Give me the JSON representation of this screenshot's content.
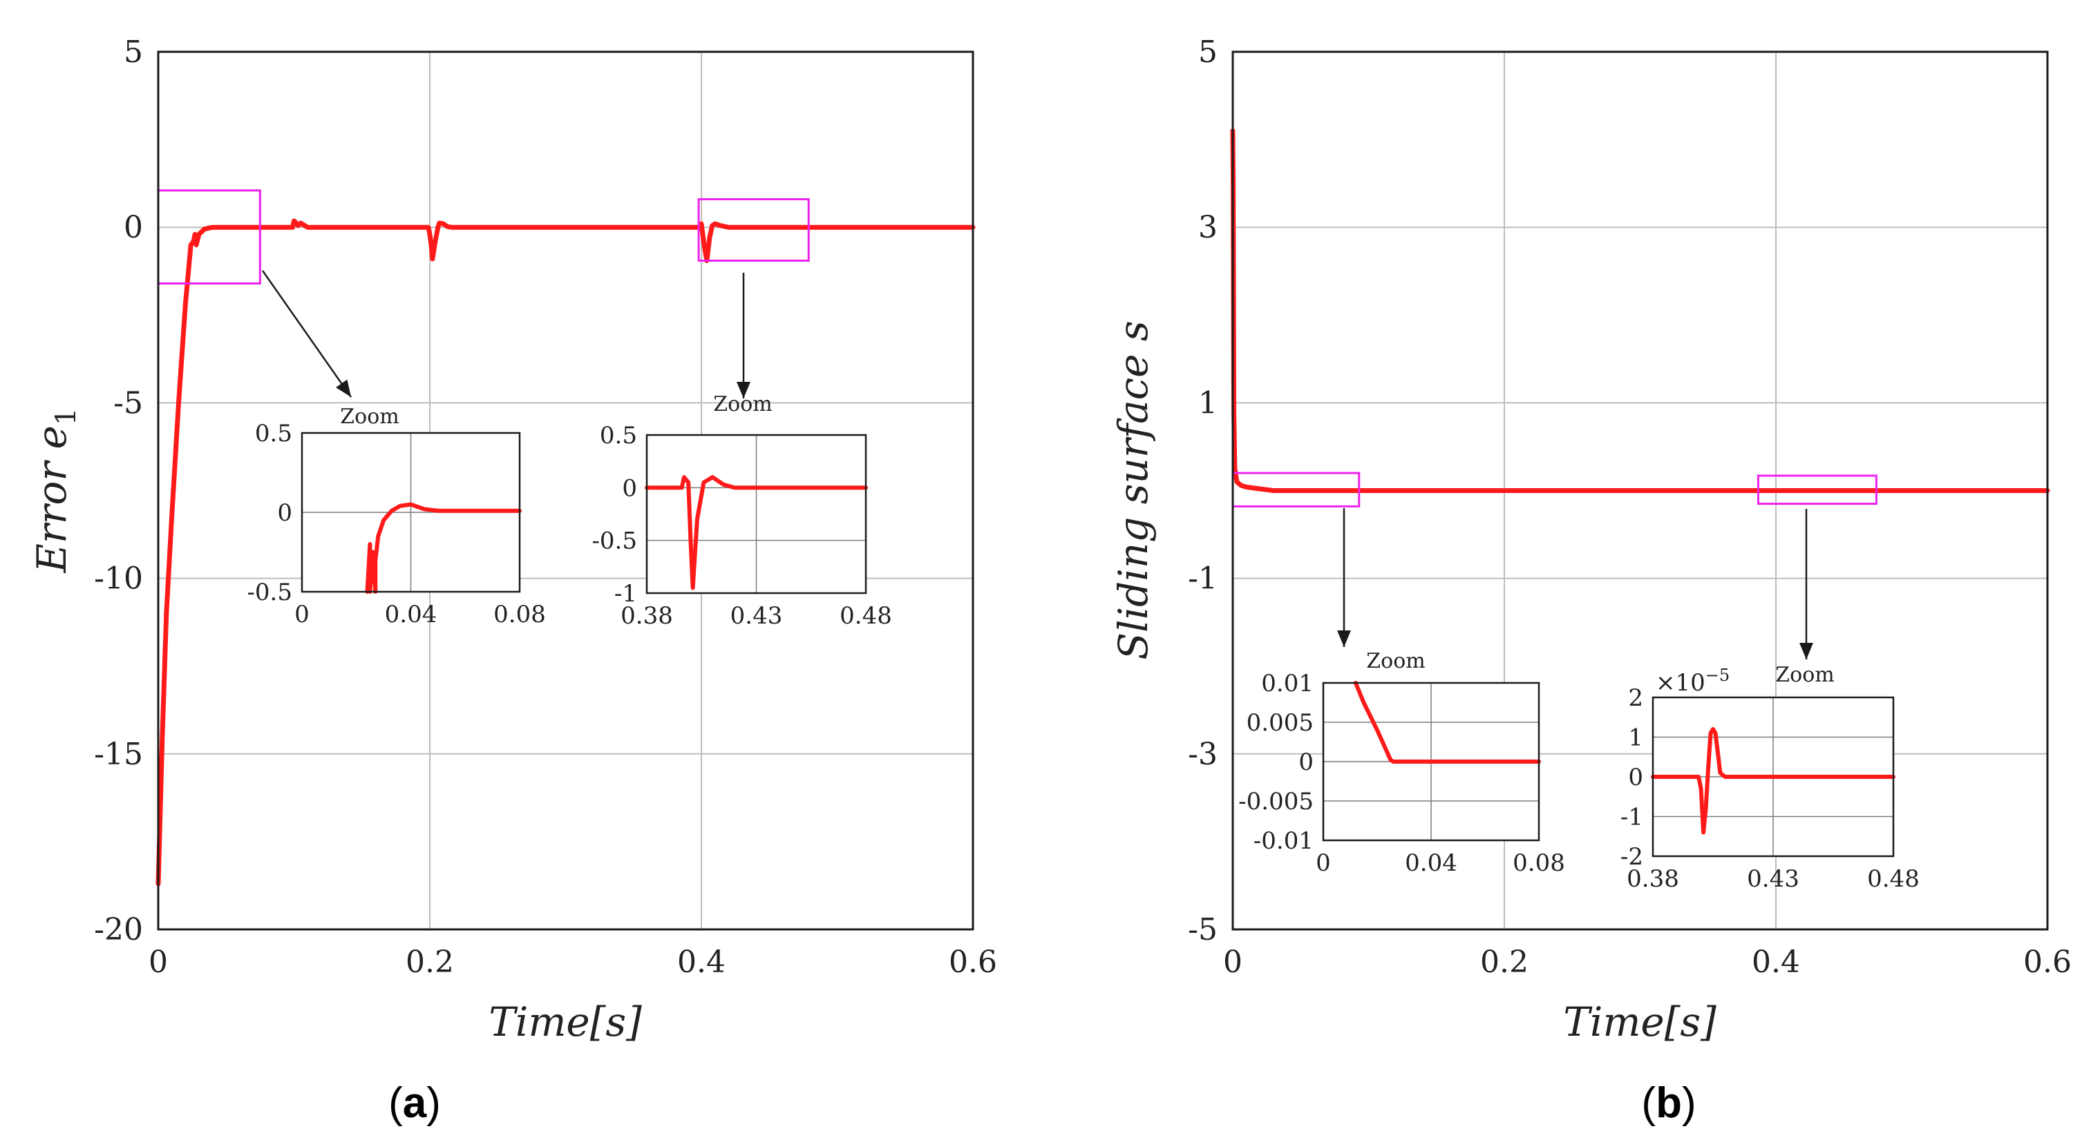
{
  "chart_data": [
    {
      "type": "line",
      "panel_label": "(a)",
      "panel_label_parts": [
        "(",
        "a",
        ")"
      ],
      "xlabel": "Time[s]",
      "ylabel": "Error e",
      "ylabel_subscript": "1",
      "xlim": [
        0,
        0.6
      ],
      "ylim": [
        -20,
        5
      ],
      "xticks": [
        0,
        0.2,
        0.4,
        0.6
      ],
      "xtick_labels": [
        "0",
        "0.2",
        "0.4",
        "0.6"
      ],
      "yticks": [
        5,
        0,
        -5,
        -10,
        -15,
        -20
      ],
      "ytick_labels": [
        "5",
        "0",
        "-5",
        "-10",
        "-15",
        "-20"
      ],
      "grid": true,
      "color": "#ff1a1a",
      "series": [
        {
          "name": "e1",
          "x": [
            0,
            0.003,
            0.006,
            0.01,
            0.015,
            0.02,
            0.024,
            0.026,
            0.027,
            0.028,
            0.03,
            0.034,
            0.04,
            0.05,
            0.099,
            0.1,
            0.101,
            0.103,
            0.105,
            0.11,
            0.199,
            0.2,
            0.201,
            0.202,
            0.204,
            0.206,
            0.207,
            0.21,
            0.213,
            0.216,
            0.22,
            0.399,
            0.4,
            0.402,
            0.404,
            0.406,
            0.408,
            0.41,
            0.414,
            0.42,
            0.6
          ],
          "y": [
            -18.7,
            -14.5,
            -11,
            -8.2,
            -5,
            -2.2,
            -0.5,
            -0.4,
            -0.2,
            -0.5,
            -0.2,
            -0.05,
            0,
            0,
            0,
            0.18,
            0.15,
            0.05,
            0.12,
            0,
            0,
            -0.2,
            -0.5,
            -0.9,
            -0.4,
            0,
            0.12,
            0.1,
            0.02,
            0,
            0,
            0,
            0.1,
            -0.5,
            -0.95,
            -0.3,
            0.05,
            0.1,
            0.05,
            0,
            0
          ]
        }
      ],
      "highlight_boxes": [
        {
          "x": [
            0,
            0.075
          ],
          "y": [
            -1.6,
            1.05
          ]
        },
        {
          "x": [
            0.398,
            0.479
          ],
          "y": [
            -0.95,
            0.8
          ]
        }
      ],
      "insets": [
        {
          "title": "Zoom",
          "xlim": [
            0,
            0.08
          ],
          "ylim": [
            -0.5,
            0.5
          ],
          "xticks": [
            0,
            0.04,
            0.08
          ],
          "xtick_labels": [
            "0",
            "0.04",
            "0.08"
          ],
          "yticks": [
            0.5,
            0,
            -0.5
          ],
          "ytick_labels": [
            "0.5",
            "0",
            "-0.5"
          ],
          "x": [
            0.024,
            0.025,
            0.025,
            0.026,
            0.027,
            0.027,
            0.028,
            0.03,
            0.033,
            0.036,
            0.04,
            0.045,
            0.05,
            0.06,
            0.08
          ],
          "y": [
            -0.5,
            -0.2,
            -0.5,
            -0.25,
            -0.5,
            -0.3,
            -0.15,
            -0.05,
            0.01,
            0.04,
            0.05,
            0.02,
            0.01,
            0.01,
            0.01
          ]
        },
        {
          "title": "Zoom",
          "xlim": [
            0.38,
            0.48
          ],
          "ylim": [
            -1,
            0.5
          ],
          "xticks": [
            0.38,
            0.43,
            0.48
          ],
          "xtick_labels": [
            "0.38",
            "0.43",
            "0.48"
          ],
          "yticks": [
            0.5,
            0,
            -0.5,
            -1
          ],
          "ytick_labels": [
            "0.5",
            "0",
            "-0.5",
            "-1"
          ],
          "x": [
            0.38,
            0.396,
            0.397,
            0.399,
            0.4,
            0.401,
            0.403,
            0.406,
            0.41,
            0.415,
            0.42,
            0.48
          ],
          "y": [
            0,
            0,
            0.1,
            0.05,
            -0.5,
            -0.95,
            -0.3,
            0.05,
            0.1,
            0.03,
            0,
            0
          ]
        }
      ]
    },
    {
      "type": "line",
      "panel_label": "(b)",
      "panel_label_parts": [
        "(",
        "b",
        ")"
      ],
      "xlabel": "Time[s]",
      "ylabel": "Sliding surface s",
      "xlim": [
        0,
        0.6
      ],
      "ylim": [
        -5,
        5
      ],
      "xticks": [
        0,
        0.2,
        0.4,
        0.6
      ],
      "xtick_labels": [
        "0",
        "0.2",
        "0.4",
        "0.6"
      ],
      "yticks": [
        5,
        3,
        1,
        -1,
        -3,
        -5
      ],
      "ytick_labels": [
        "5",
        "3",
        "1",
        "-1",
        "-3",
        "-5"
      ],
      "grid": true,
      "color": "#ff1a1a",
      "series": [
        {
          "name": "s",
          "x": [
            0,
            0.0003,
            0.0008,
            0.0015,
            0.003,
            0.006,
            0.01,
            0.02,
            0.03,
            0.6
          ],
          "y": [
            4.1,
            3.5,
            0.9,
            0.25,
            0.1,
            0.06,
            0.04,
            0.02,
            0,
            0
          ]
        }
      ],
      "highlight_boxes": [
        {
          "x": [
            0,
            0.093
          ],
          "y": [
            -0.18,
            0.2
          ]
        },
        {
          "x": [
            0.387,
            0.474
          ],
          "y": [
            -0.15,
            0.17
          ]
        }
      ],
      "insets": [
        {
          "title": "Zoom",
          "xlim": [
            0,
            0.08
          ],
          "ylim": [
            -0.01,
            0.01
          ],
          "xticks": [
            0,
            0.04,
            0.08
          ],
          "xtick_labels": [
            "0",
            "0.04",
            "0.08"
          ],
          "yticks": [
            0.01,
            0.005,
            0,
            -0.005,
            -0.01
          ],
          "ytick_labels": [
            "0.01",
            "0.005",
            "0",
            "-0.005",
            "-0.01"
          ],
          "x": [
            0.012,
            0.015,
            0.02,
            0.025,
            0.026,
            0.03,
            0.08
          ],
          "y": [
            0.01,
            0.0075,
            0.004,
            0.0002,
            0,
            0,
            0
          ]
        },
        {
          "title": "Zoom",
          "multiplier": "×10",
          "multiplier_exp": "−5",
          "xlim": [
            0.38,
            0.48
          ],
          "ylim": [
            -2,
            2
          ],
          "xticks": [
            0.38,
            0.43,
            0.48
          ],
          "xtick_labels": [
            "0.38",
            "0.43",
            "0.48"
          ],
          "yticks": [
            2,
            1,
            0,
            -1,
            -2
          ],
          "ytick_labels": [
            "2",
            "1",
            "0",
            "-1",
            "-2"
          ],
          "x": [
            0.38,
            0.399,
            0.4,
            0.401,
            0.402,
            0.403,
            0.404,
            0.405,
            0.406,
            0.407,
            0.408,
            0.41,
            0.48
          ],
          "y": [
            0,
            0,
            -0.3,
            -1.4,
            -0.8,
            0.2,
            1.1,
            1.2,
            1.1,
            0.6,
            0.1,
            0,
            0
          ]
        }
      ]
    }
  ]
}
